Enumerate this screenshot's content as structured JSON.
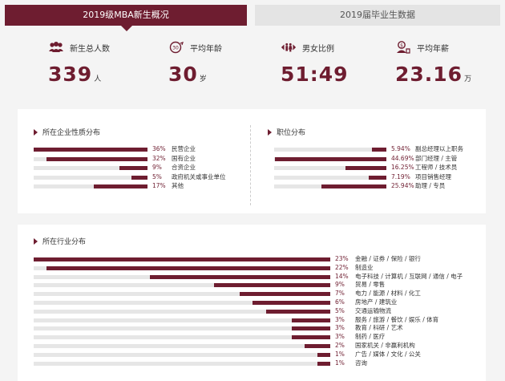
{
  "tabs": {
    "active_label": "2019级MBA新生概况",
    "inactive_label": "2019届毕业生数据"
  },
  "stats": [
    {
      "icon": "people-icon",
      "label": "新生总人数",
      "value": "339",
      "unit": "人"
    },
    {
      "icon": "age-clock-icon",
      "label": "平均年龄",
      "value": "30",
      "unit": "岁"
    },
    {
      "icon": "gender-ratio-icon",
      "label": "男女比例",
      "value": "51:49",
      "unit": ""
    },
    {
      "icon": "salary-icon",
      "label": "平均年薪",
      "value": "23.16",
      "unit": "万"
    }
  ],
  "colors": {
    "accent": "#6e1d30",
    "track": "#e6e6e6"
  },
  "enterprise": {
    "title": "所在企业性质分布",
    "items": [
      {
        "pct_text": "36%",
        "value": 36,
        "label": "民营企业"
      },
      {
        "pct_text": "32%",
        "value": 32,
        "label": "国有企业"
      },
      {
        "pct_text": "9%",
        "value": 9,
        "label": "合资企业"
      },
      {
        "pct_text": "5%",
        "value": 5,
        "label": "政府机关或事业单位"
      },
      {
        "pct_text": "17%",
        "value": 17,
        "label": "其他"
      }
    ]
  },
  "position": {
    "title": "职位分布",
    "items": [
      {
        "pct_text": "5.94%",
        "value": 5.94,
        "label": "副总经理以上职务"
      },
      {
        "pct_text": "44.69%",
        "value": 44.69,
        "label": "部门经理 / 主管"
      },
      {
        "pct_text": "16.25%",
        "value": 16.25,
        "label": "工程师 / 技术员"
      },
      {
        "pct_text": "7.19%",
        "value": 7.19,
        "label": "项目销售经理"
      },
      {
        "pct_text": "25.94%",
        "value": 25.94,
        "label": "助理 / 专员"
      }
    ]
  },
  "industry": {
    "title": "所在行业分布",
    "items": [
      {
        "pct_text": "23%",
        "value": 23,
        "label": "金融 / 证券 / 保险 / 银行"
      },
      {
        "pct_text": "22%",
        "value": 22,
        "label": "制造业"
      },
      {
        "pct_text": "14%",
        "value": 14,
        "label": "电子科技 / 计算机 / 互联网 / 通信 / 电子"
      },
      {
        "pct_text": "9%",
        "value": 9,
        "label": "贸易 / 零售"
      },
      {
        "pct_text": "7%",
        "value": 7,
        "label": "电力 / 能源 / 材料 / 化工"
      },
      {
        "pct_text": "6%",
        "value": 6,
        "label": "房地产 / 建筑业"
      },
      {
        "pct_text": "5%",
        "value": 5,
        "label": "交通运输物流"
      },
      {
        "pct_text": "3%",
        "value": 3,
        "label": "服务 / 旅游 / 餐饮 / 娱乐 / 体育"
      },
      {
        "pct_text": "3%",
        "value": 3,
        "label": "教育 / 科研 / 艺术"
      },
      {
        "pct_text": "3%",
        "value": 3,
        "label": "制药 / 医疗"
      },
      {
        "pct_text": "2%",
        "value": 2,
        "label": "国家机关 / 非赢利机构"
      },
      {
        "pct_text": "1%",
        "value": 1,
        "label": "广告 / 媒体 / 文化 / 公关"
      },
      {
        "pct_text": "1%",
        "value": 1,
        "label": "咨询"
      }
    ]
  }
}
